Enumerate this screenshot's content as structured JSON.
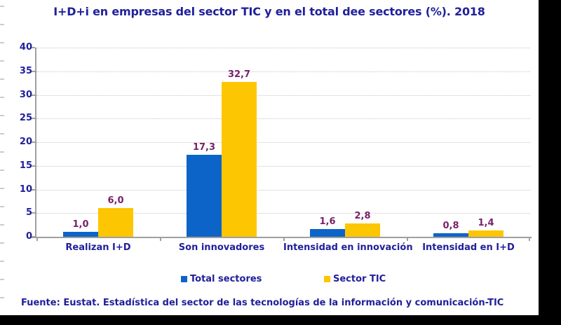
{
  "chart_data": {
    "type": "bar",
    "title": "I+D+i en empresas del sector TIC y en el total dee sectores (%). 2018",
    "categories": [
      "Realizan I+D",
      "Son innovadores",
      "Intensidad en innovación",
      "Intensidad en I+D"
    ],
    "series": [
      {
        "name": "Total sectores",
        "color": "#0d64c8",
        "values": [
          1.0,
          17.3,
          1.6,
          0.8
        ]
      },
      {
        "name": "Sector TIC",
        "color": "#fdc602",
        "values": [
          6.0,
          32.7,
          2.8,
          1.4
        ]
      }
    ],
    "value_label_format": "decimal-comma-1",
    "xlabel": "",
    "ylabel": "",
    "ylim": [
      0,
      40
    ],
    "yticks": [
      0,
      5,
      10,
      15,
      20,
      25,
      30,
      35,
      40
    ],
    "grid": "horizontal-dotted",
    "legend_position": "bottom"
  },
  "footer": {
    "text": "Fuente: Eustat. Estadística del sector de las tecnologías de la información y comunicación-TIC"
  },
  "colors": {
    "text_navy": "#20209b",
    "value_label": "#79216b",
    "bar_blue": "#0d64c8",
    "bar_yellow": "#fdc602",
    "axis_gray": "#a0a0a0",
    "grid_gray": "#c6c6c6",
    "background": "#ffffff",
    "mask_black": "#000000"
  }
}
